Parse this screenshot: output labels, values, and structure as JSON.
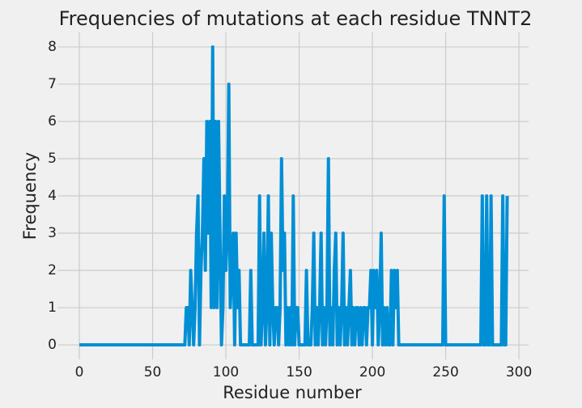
{
  "chart_data": {
    "type": "line",
    "title": "Frequencies of mutations at each residue TNNT2",
    "x_label": "Residue number",
    "y_label": "Frequency",
    "x": [
      0,
      72,
      73,
      74,
      75,
      76,
      77,
      78,
      79,
      80,
      81,
      82,
      83,
      84,
      85,
      86,
      87,
      88,
      89,
      90,
      91,
      92,
      93,
      94,
      95,
      96,
      97,
      98,
      99,
      100,
      101,
      102,
      103,
      104,
      105,
      106,
      107,
      108,
      109,
      110,
      116,
      117,
      118,
      122,
      123,
      124,
      125,
      126,
      127,
      128,
      129,
      130,
      131,
      132,
      133,
      134,
      135,
      136,
      137,
      138,
      139,
      140,
      141,
      142,
      143,
      144,
      145,
      146,
      147,
      148,
      149,
      150,
      154,
      155,
      156,
      158,
      159,
      160,
      161,
      162,
      163,
      164,
      165,
      166,
      167,
      168,
      169,
      170,
      171,
      172,
      173,
      174,
      175,
      176,
      177,
      178,
      179,
      180,
      181,
      182,
      183,
      184,
      185,
      186,
      187,
      188,
      189,
      190,
      191,
      192,
      193,
      194,
      195,
      196,
      197,
      198,
      199,
      200,
      201,
      202,
      203,
      204,
      205,
      206,
      207,
      208,
      209,
      210,
      211,
      212,
      213,
      214,
      215,
      216,
      217,
      218,
      219,
      248,
      249,
      250,
      274,
      275,
      276,
      277,
      278,
      279,
      280,
      281,
      282,
      288,
      289,
      290,
      291,
      292
    ],
    "series": [
      {
        "color": "#008fd5",
        "values": [
          0,
          0,
          1,
          1,
          0,
          2,
          1,
          0,
          1,
          3,
          4,
          0,
          2,
          3,
          5,
          2,
          6,
          3,
          6,
          1,
          8,
          1,
          6,
          1,
          6,
          3,
          0,
          1,
          4,
          2,
          3,
          7,
          1,
          2,
          3,
          0,
          3,
          1,
          2,
          0,
          0,
          2,
          0,
          0,
          4,
          0,
          1,
          3,
          0,
          1,
          4,
          0,
          3,
          1,
          0,
          1,
          1,
          0,
          1,
          5,
          2,
          3,
          0,
          1,
          0,
          1,
          0,
          4,
          0,
          1,
          1,
          0,
          0,
          2,
          0,
          0,
          1,
          3,
          0,
          1,
          0,
          1,
          3,
          0,
          1,
          0,
          1,
          5,
          0,
          1,
          0,
          2,
          3,
          0,
          1,
          0,
          1,
          3,
          0,
          1,
          0,
          1,
          2,
          0,
          1,
          0,
          1,
          1,
          0,
          1,
          0,
          1,
          1,
          0,
          1,
          1,
          2,
          0,
          2,
          1,
          2,
          0,
          1,
          3,
          0,
          1,
          0,
          1,
          0,
          0,
          2,
          0,
          2,
          1,
          2,
          0,
          0,
          0,
          4,
          0,
          0,
          4,
          0,
          0,
          4,
          0,
          0,
          4,
          0,
          0,
          4,
          0,
          0,
          4
        ]
      }
    ],
    "xlim": [
      -14.6,
      306.6
    ],
    "ylim": [
      -0.39,
      8.39
    ],
    "xticks": [
      0,
      50,
      100,
      150,
      200,
      250,
      300
    ],
    "yticks": [
      0,
      1,
      2,
      3,
      4,
      5,
      6,
      7,
      8
    ],
    "grid": true
  }
}
